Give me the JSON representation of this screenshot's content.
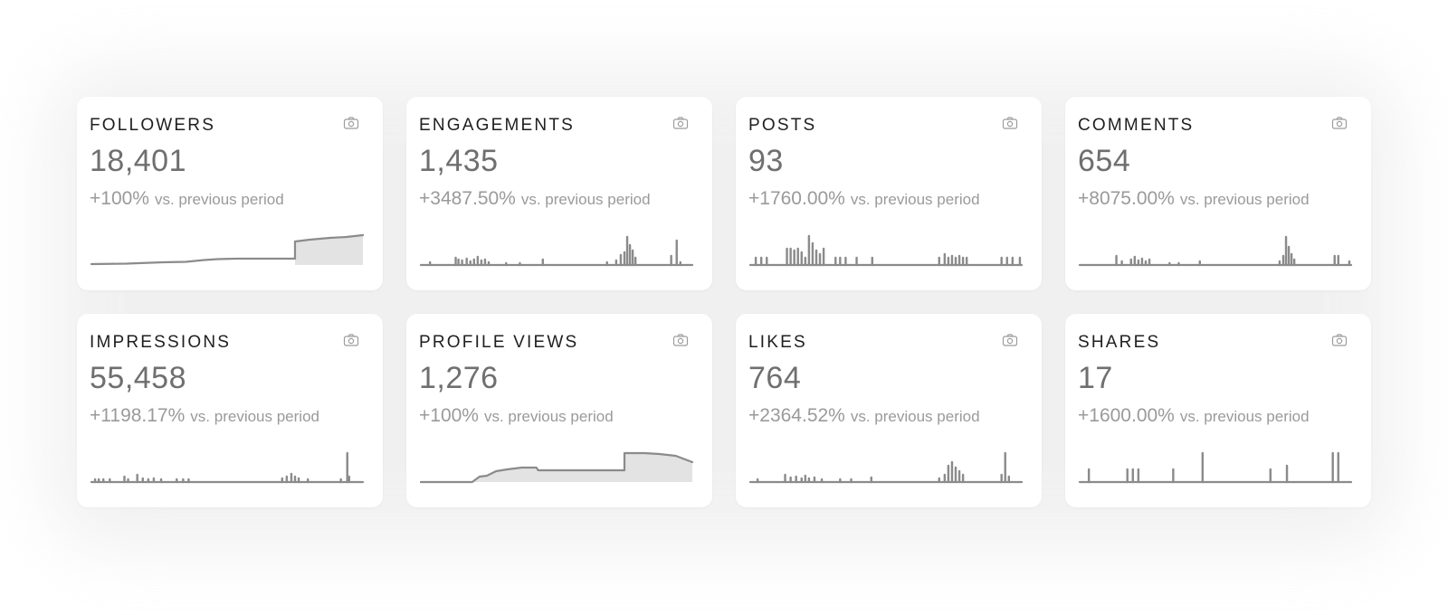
{
  "colors": {
    "card_background": "#ffffff",
    "title_text": "#1f1f1f",
    "value_text": "#6f6f6f",
    "muted_text": "#9a9a9a",
    "sparkline": "#8b8b8b",
    "sparkline_fill": "#e3e3e3"
  },
  "cards": [
    {
      "id": "followers",
      "title": "FOLLOWERS",
      "value": "18,401",
      "change": "+100%",
      "comparison": "vs. previous period",
      "icon": "camera-icon",
      "sparkline_style": "area"
    },
    {
      "id": "engagements",
      "title": "ENGAGEMENTS",
      "value": "1,435",
      "change": "+3487.50%",
      "comparison": "vs. previous period",
      "icon": "camera-icon",
      "sparkline_style": "spikes"
    },
    {
      "id": "posts",
      "title": "POSTS",
      "value": "93",
      "change": "+1760.00%",
      "comparison": "vs. previous period",
      "icon": "camera-icon",
      "sparkline_style": "spikes"
    },
    {
      "id": "comments",
      "title": "COMMENTS",
      "value": "654",
      "change": "+8075.00%",
      "comparison": "vs. previous period",
      "icon": "camera-icon",
      "sparkline_style": "spikes"
    },
    {
      "id": "impressions",
      "title": "IMPRESSIONS",
      "value": "55,458",
      "change": "+1198.17%",
      "comparison": "vs. previous period",
      "icon": "camera-icon",
      "sparkline_style": "spikes"
    },
    {
      "id": "profile-views",
      "title": "PROFILE VIEWS",
      "value": "1,276",
      "change": "+100%",
      "comparison": "vs. previous period",
      "icon": "camera-icon",
      "sparkline_style": "area"
    },
    {
      "id": "likes",
      "title": "LIKES",
      "value": "764",
      "change": "+2364.52%",
      "comparison": "vs. previous period",
      "icon": "camera-icon",
      "sparkline_style": "spikes"
    },
    {
      "id": "shares",
      "title": "SHARES",
      "value": "17",
      "change": "+1600.00%",
      "comparison": "vs. previous period",
      "icon": "camera-icon",
      "sparkline_style": "spikes"
    }
  ]
}
